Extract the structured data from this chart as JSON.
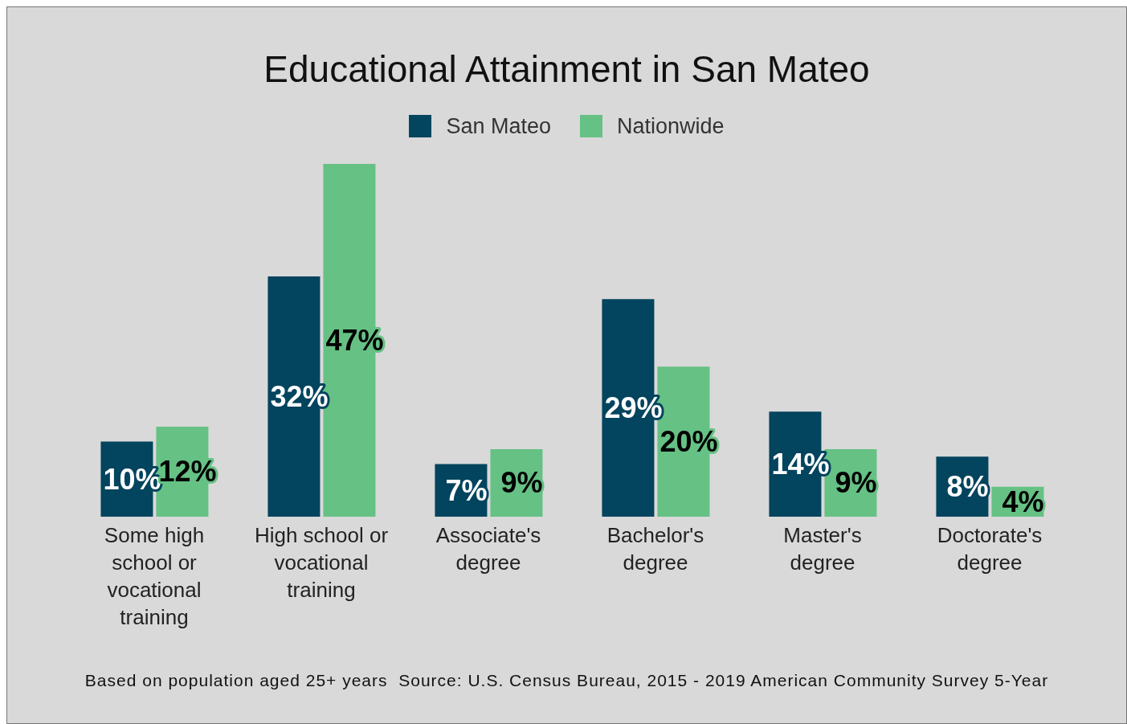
{
  "chart_data": {
    "type": "bar",
    "title": "Educational Attainment in San Mateo",
    "categories": [
      "Some high school or vocational training",
      "High school or vocational training",
      "Associate's degree",
      "Bachelor's degree",
      "Master's degree",
      "Doctorate's degree"
    ],
    "series": [
      {
        "name": "San Mateo",
        "color": "#03445e",
        "values": [
          10,
          32,
          7,
          29,
          14,
          8
        ],
        "value_labels": [
          "10%",
          "32%",
          "7%",
          "29%",
          "14%",
          "8%"
        ]
      },
      {
        "name": "Nationwide",
        "color": "#66c184",
        "values": [
          12,
          47,
          9,
          20,
          9,
          4
        ],
        "value_labels": [
          "12%",
          "47%",
          "9%",
          "20%",
          "9%",
          "4%"
        ]
      }
    ],
    "legend": "top",
    "grid": false,
    "annotations": [
      "Based on population aged 25+ years  Source: U.S. Census Bureau, 2015 - 2019 American Community Survey 5-Year"
    ]
  }
}
